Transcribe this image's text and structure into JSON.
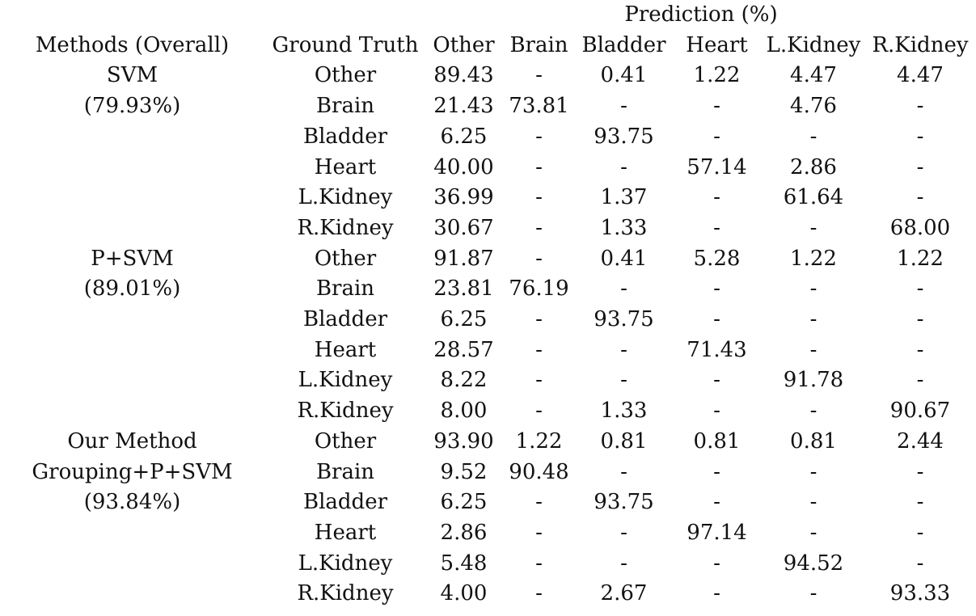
{
  "prediction_header": "Prediction (%)",
  "col_headers": {
    "methods": "Methods (Overall)",
    "ground_truth": "Ground Truth",
    "classes": [
      "Other",
      "Brain",
      "Bladder",
      "Heart",
      "L.Kidney",
      "R.Kidney"
    ]
  },
  "groups": [
    {
      "name_lines": [
        "SVM",
        "(79.93%)"
      ],
      "rows": [
        {
          "gt": "Other",
          "cells": [
            "89.43",
            "-",
            "0.41",
            "1.22",
            "4.47",
            "4.47"
          ],
          "bold": 0
        },
        {
          "gt": "Brain",
          "cells": [
            "21.43",
            "73.81",
            "-",
            "-",
            "4.76",
            "-"
          ],
          "bold": 1
        },
        {
          "gt": "Bladder",
          "cells": [
            "6.25",
            "-",
            "93.75",
            "-",
            "-",
            "-"
          ],
          "bold": 2
        },
        {
          "gt": "Heart",
          "cells": [
            "40.00",
            "-",
            "-",
            "57.14",
            "2.86",
            "-"
          ],
          "bold": 3
        },
        {
          "gt": "L.Kidney",
          "cells": [
            "36.99",
            "-",
            "1.37",
            "-",
            "61.64",
            "-"
          ],
          "bold": 4
        },
        {
          "gt": "R.Kidney",
          "cells": [
            "30.67",
            "-",
            "1.33",
            "-",
            "-",
            "68.00"
          ],
          "bold": 5
        }
      ]
    },
    {
      "name_lines": [
        "P+SVM",
        "(89.01%)"
      ],
      "rows": [
        {
          "gt": "Other",
          "cells": [
            "91.87",
            "-",
            "0.41",
            "5.28",
            "1.22",
            "1.22"
          ],
          "bold": 0
        },
        {
          "gt": "Brain",
          "cells": [
            "23.81",
            "76.19",
            "-",
            "-",
            "-",
            "-"
          ],
          "bold": 1
        },
        {
          "gt": "Bladder",
          "cells": [
            "6.25",
            "-",
            "93.75",
            "-",
            "-",
            "-"
          ],
          "bold": 2
        },
        {
          "gt": "Heart",
          "cells": [
            "28.57",
            "-",
            "-",
            "71.43",
            "-",
            "-"
          ],
          "bold": 3
        },
        {
          "gt": "L.Kidney",
          "cells": [
            "8.22",
            "-",
            "-",
            "-",
            "91.78",
            "-"
          ],
          "bold": 4
        },
        {
          "gt": "R.Kidney",
          "cells": [
            "8.00",
            "-",
            "1.33",
            "-",
            "-",
            "90.67"
          ],
          "bold": 5
        }
      ]
    },
    {
      "name_lines": [
        "Our Method",
        "Grouping+P+SVM",
        "(93.84%)"
      ],
      "rows": [
        {
          "gt": "Other",
          "cells": [
            "93.90",
            "1.22",
            "0.81",
            "0.81",
            "0.81",
            "2.44"
          ],
          "bold": 0
        },
        {
          "gt": "Brain",
          "cells": [
            "9.52",
            "90.48",
            "-",
            "-",
            "-",
            "-"
          ],
          "bold": 1
        },
        {
          "gt": "Bladder",
          "cells": [
            "6.25",
            "-",
            "93.75",
            "-",
            "-",
            "-"
          ],
          "bold": 2
        },
        {
          "gt": "Heart",
          "cells": [
            "2.86",
            "-",
            "-",
            "97.14",
            "-",
            "-"
          ],
          "bold": 3
        },
        {
          "gt": "L.Kidney",
          "cells": [
            "5.48",
            "-",
            "-",
            "-",
            "94.52",
            "-"
          ],
          "bold": 4
        },
        {
          "gt": "R.Kidney",
          "cells": [
            "4.00",
            "-",
            "2.67",
            "-",
            "-",
            "93.33"
          ],
          "bold": 5
        }
      ]
    }
  ]
}
